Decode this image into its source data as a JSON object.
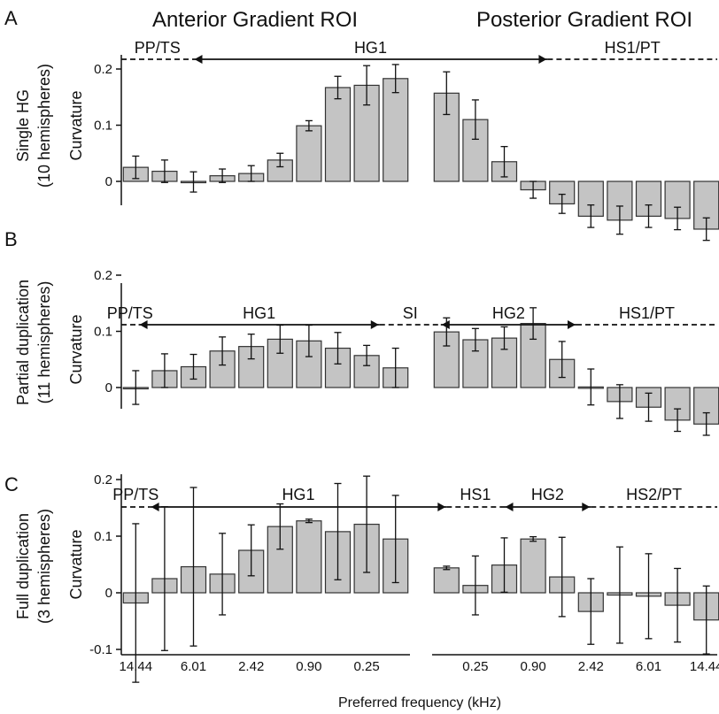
{
  "figure": {
    "headers": [
      "Anterior Gradient ROI",
      "Posterior Gradient ROI"
    ],
    "xlabel": "Preferred frequency (kHz)",
    "colors": {
      "bar_fill": "#c4c4c4",
      "bar_stroke": "#333333",
      "axis": "#111111"
    }
  },
  "chart_data": [
    {
      "panel": "A",
      "type": "bar",
      "ylabel": "Curvature",
      "group_label": [
        "Single HG",
        "(10 hemispheres)"
      ],
      "yticks": [
        0,
        0.1,
        0.2
      ],
      "ytick_labels": [
        "0",
        "0.1",
        "0.2"
      ],
      "ylim": [
        -0.04,
        0.22
      ],
      "regions": [
        {
          "label": "PP/TS",
          "style": "dashed",
          "from": 0,
          "to": 2.5
        },
        {
          "label": "HG1",
          "style": "solid",
          "from": 2.5,
          "to": 14
        },
        {
          "label": "HS1/PT",
          "style": "dashed",
          "from": 14,
          "to": 20.3
        }
      ],
      "series": [
        {
          "roi": "anterior",
          "values": [
            0.025,
            0.018,
            -0.001,
            0.01,
            0.014,
            0.038,
            0.099,
            0.167,
            0.171,
            0.183
          ],
          "errors": [
            0.02,
            0.02,
            0.018,
            0.012,
            0.014,
            0.012,
            0.009,
            0.02,
            0.035,
            0.025
          ]
        },
        {
          "roi": "posterior",
          "values": [
            0.157,
            0.11,
            0.035,
            -0.015,
            -0.04,
            -0.062,
            -0.069,
            -0.062,
            -0.066,
            -0.085
          ],
          "errors": [
            0.038,
            0.035,
            0.027,
            0.015,
            0.017,
            0.02,
            0.025,
            0.02,
            0.02,
            0.02
          ]
        }
      ]
    },
    {
      "panel": "B",
      "type": "bar",
      "ylabel": "Curvature",
      "group_label": [
        "Partial duplication",
        "(11 hemispheres)"
      ],
      "yticks": [
        0,
        0.1,
        0.2
      ],
      "ytick_labels": [
        "0",
        "0.1",
        "0.2"
      ],
      "ylim": [
        -0.06,
        0.22
      ],
      "regions": [
        {
          "label": "PP/TS",
          "style": "dashed",
          "from": 0,
          "to": 0.6
        },
        {
          "label": "HG1",
          "style": "solid",
          "from": 0.6,
          "to": 8.95
        },
        {
          "label": "SI",
          "style": "dashed",
          "from": 8.95,
          "to": 10.3
        },
        {
          "label": "HG2",
          "style": "solid",
          "from": 10.3,
          "to": 15
        },
        {
          "label": "HS1/PT",
          "style": "dashed",
          "from": 15,
          "to": 20.3
        }
      ],
      "series": [
        {
          "roi": "anterior",
          "values": [
            0.0,
            0.03,
            0.037,
            0.065,
            0.073,
            0.086,
            0.083,
            0.07,
            0.057,
            0.035
          ],
          "errors": [
            0.03,
            0.03,
            0.022,
            0.025,
            0.022,
            0.025,
            0.028,
            0.028,
            0.018,
            0.035
          ]
        },
        {
          "roi": "posterior",
          "values": [
            0.099,
            0.085,
            0.088,
            0.114,
            0.05,
            0.001,
            -0.025,
            -0.035,
            -0.058,
            -0.065
          ],
          "errors": [
            0.025,
            0.02,
            0.02,
            0.028,
            0.032,
            0.032,
            0.03,
            0.025,
            0.02,
            0.02
          ]
        }
      ]
    },
    {
      "panel": "C",
      "type": "bar",
      "ylabel": "Curvature",
      "group_label": [
        "Full duplication",
        "(3 hemispheres)"
      ],
      "yticks": [
        -0.1,
        0,
        0.1,
        0.2
      ],
      "ytick_labels": [
        "-0.1",
        "0",
        "0.1",
        "0.2"
      ],
      "ylim": [
        -0.12,
        0.21
      ],
      "regions": [
        {
          "label": "PP/TS",
          "style": "dashed",
          "from": 0,
          "to": 1
        },
        {
          "label": "HG1",
          "style": "solid",
          "from": 1,
          "to": 10.5
        },
        {
          "label": "HS1",
          "style": "dashed",
          "from": 10.5,
          "to": 12.5
        },
        {
          "label": "HG2",
          "style": "solid",
          "from": 12.5,
          "to": 15.5
        },
        {
          "label": "HS2/PT",
          "style": "dashed",
          "from": 15.5,
          "to": 20.3
        }
      ],
      "series": [
        {
          "roi": "anterior",
          "values": [
            -0.018,
            0.025,
            0.046,
            0.033,
            0.075,
            0.117,
            0.127,
            0.108,
            0.121,
            0.095
          ],
          "errors": [
            0.14,
            0.127,
            0.14,
            0.072,
            0.045,
            0.04,
            0.003,
            0.085,
            0.085,
            0.077
          ]
        },
        {
          "roi": "posterior",
          "values": [
            0.044,
            0.013,
            0.049,
            0.095,
            0.028,
            -0.033,
            -0.004,
            -0.006,
            -0.022,
            -0.048
          ],
          "errors": [
            0.003,
            0.052,
            0.048,
            0.004,
            0.07,
            0.058,
            0.085,
            0.075,
            0.065,
            0.06
          ]
        }
      ],
      "xtick_labels_anterior": [
        "14.44",
        "6.01",
        "2.42",
        "0.90",
        "0.25"
      ],
      "xtick_labels_posterior": [
        "0.25",
        "0.90",
        "2.42",
        "6.01",
        "14.44"
      ]
    }
  ]
}
